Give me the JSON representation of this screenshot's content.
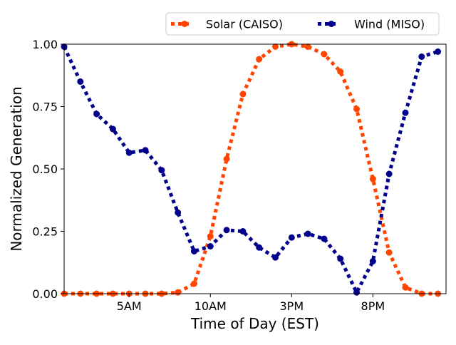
{
  "chart_data": {
    "type": "line",
    "title": "",
    "xlabel": "Time of Day (EST)",
    "ylabel": "Normalized Generation",
    "xlim": [
      0,
      23.5
    ],
    "ylim": [
      0,
      1
    ],
    "grid": false,
    "legend_position": "top-right",
    "x_ticks": [
      {
        "value": 4,
        "label": "5AM"
      },
      {
        "value": 9,
        "label": "10AM"
      },
      {
        "value": 14,
        "label": "3PM"
      },
      {
        "value": 19,
        "label": "8PM"
      }
    ],
    "y_ticks": [
      {
        "value": 0,
        "label": "0.00"
      },
      {
        "value": 0.25,
        "label": "0.25"
      },
      {
        "value": 0.5,
        "label": "0.50"
      },
      {
        "value": 0.75,
        "label": "0.75"
      },
      {
        "value": 1,
        "label": "1.00"
      }
    ],
    "series": [
      {
        "name": "Solar (CAISO)",
        "color": "#ff4500",
        "x": [
          0,
          1,
          2,
          3,
          4,
          5,
          6,
          7,
          8,
          9,
          10,
          11,
          12,
          13,
          14,
          15,
          16,
          17,
          18,
          19,
          20,
          21,
          22,
          23
        ],
        "values": [
          0,
          0,
          0,
          0,
          0,
          0,
          0,
          0.005,
          0.04,
          0.23,
          0.54,
          0.8,
          0.94,
          0.99,
          1.0,
          0.99,
          0.96,
          0.89,
          0.74,
          0.46,
          0.165,
          0.025,
          0,
          0
        ]
      },
      {
        "name": "Wind (MISO)",
        "color": "#00008b",
        "x": [
          0,
          1,
          2,
          3,
          4,
          5,
          6,
          7,
          8,
          9,
          10,
          11,
          12,
          13,
          14,
          15,
          16,
          17,
          18,
          19,
          20,
          21,
          22,
          23
        ],
        "values": [
          0.99,
          0.85,
          0.72,
          0.66,
          0.565,
          0.575,
          0.495,
          0.325,
          0.17,
          0.19,
          0.255,
          0.25,
          0.185,
          0.145,
          0.225,
          0.24,
          0.22,
          0.14,
          0.005,
          0.13,
          0.48,
          0.725,
          0.95,
          0.97
        ]
      }
    ]
  }
}
